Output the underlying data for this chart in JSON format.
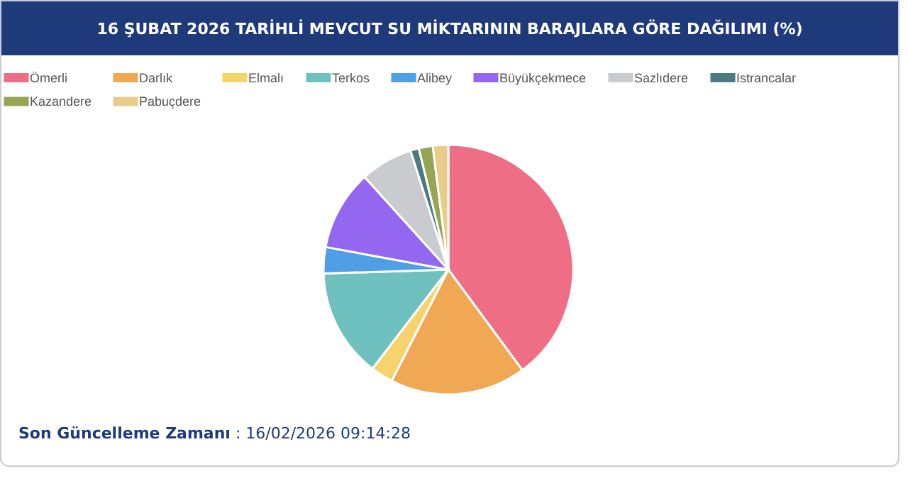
{
  "chart_data": {
    "type": "pie",
    "title": "16 ŞUBAT 2026 TARİHLİ MEVCUT SU MİKTARININ BARAJLARA GÖRE DAĞILIMI (%)",
    "categories": [
      "Ömerli",
      "Darlık",
      "Elmalı",
      "Terkos",
      "Alibey",
      "Büyükçekmece",
      "Sazlıdere",
      "Istrancalar",
      "Kazandere",
      "Pabuçdere"
    ],
    "values": [
      39.9,
      17.6,
      2.9,
      14.1,
      3.4,
      10.4,
      6.8,
      1.1,
      1.8,
      2.0
    ],
    "colors": [
      "#ee6e85",
      "#f0a854",
      "#f7d36e",
      "#6fc1bf",
      "#4e9fe6",
      "#9467f0",
      "#c9cbcf",
      "#4b7a80",
      "#97a454",
      "#e8cd8a"
    ],
    "legend": "top",
    "annotations": [
      "Son Güncelleme Zamanı : 16/02/2026 09:14:28"
    ]
  }
}
